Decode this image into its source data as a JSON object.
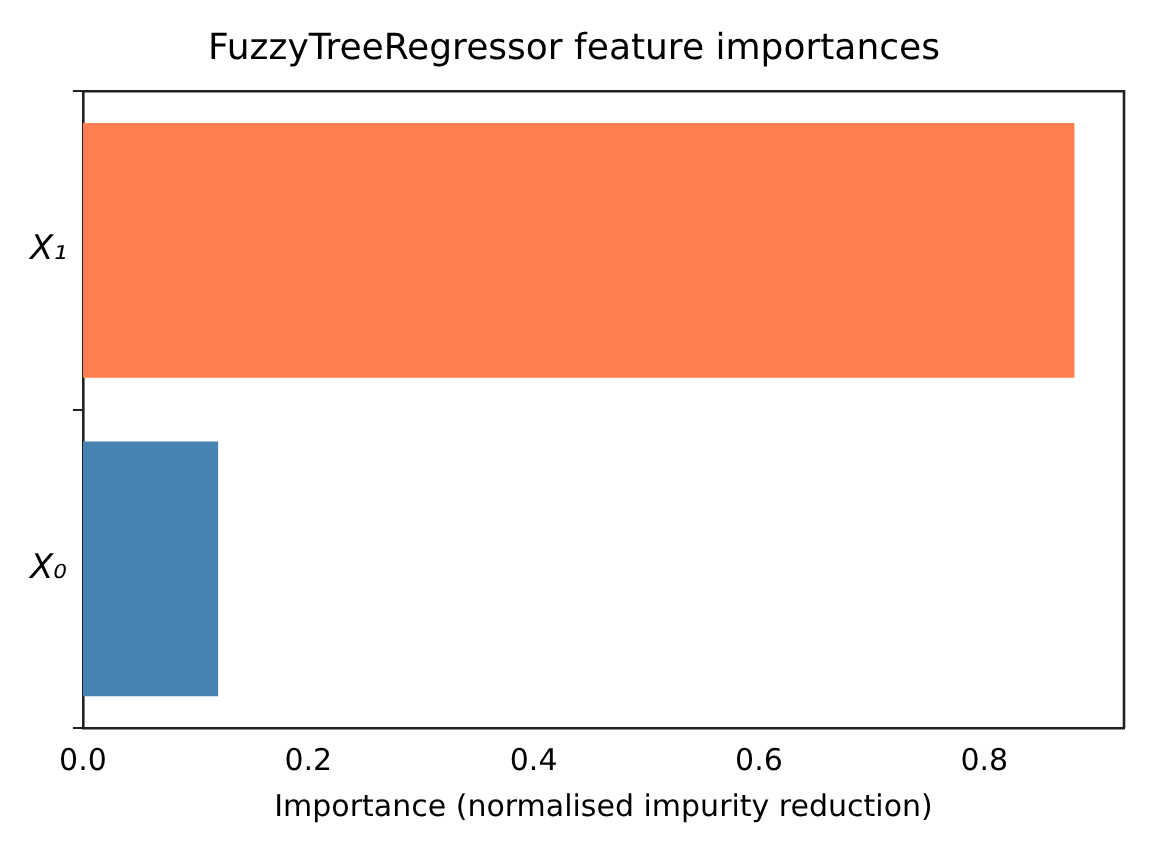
{
  "chart_data": {
    "type": "bar",
    "orientation": "horizontal",
    "title": "FuzzyTreeRegressor feature importances",
    "xlabel": "Importance (normalised impurity reduction)",
    "categories": [
      "X₁",
      "X₀"
    ],
    "values": [
      0.88,
      0.12
    ],
    "colors": [
      "#ff7f50",
      "#4682b4"
    ],
    "xlim": [
      0,
      0.924
    ],
    "xticks": [
      {
        "value": 0,
        "label": "0.0"
      },
      {
        "value": 0.2,
        "label": "0.2"
      },
      {
        "value": 0.4,
        "label": "0.4"
      },
      {
        "value": 0.6,
        "label": "0.6"
      },
      {
        "value": 0.8,
        "label": "0.8"
      }
    ],
    "grid": false,
    "legend": false
  }
}
